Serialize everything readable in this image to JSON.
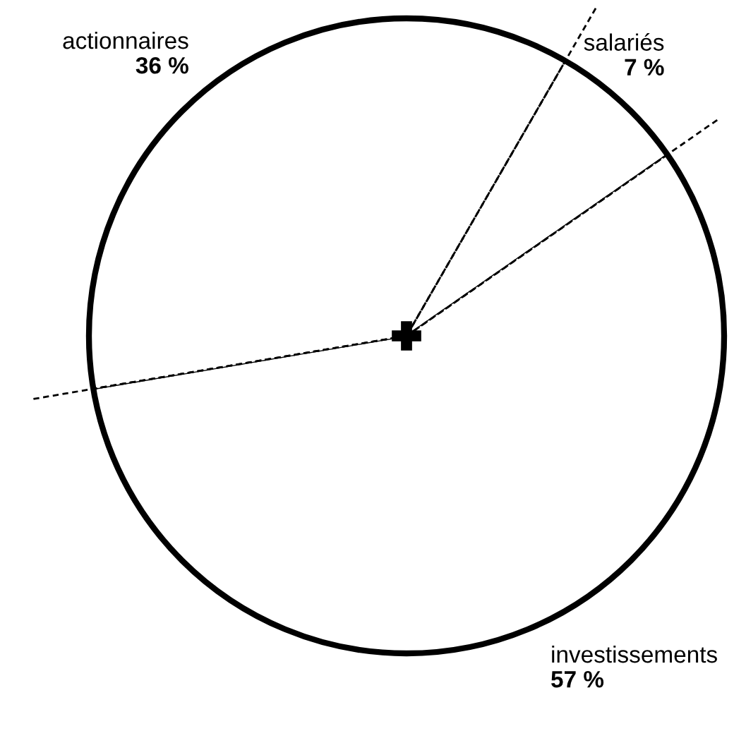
{
  "chart_data": {
    "type": "pie",
    "categories": [
      "salariés",
      "investissements",
      "actionnaires"
    ],
    "values": [
      7,
      57,
      36
    ],
    "value_labels": [
      "7 %",
      "57 %",
      "36 %"
    ],
    "colors": [
      "#ffffff",
      "#ffffff",
      "#ffffff"
    ]
  }
}
